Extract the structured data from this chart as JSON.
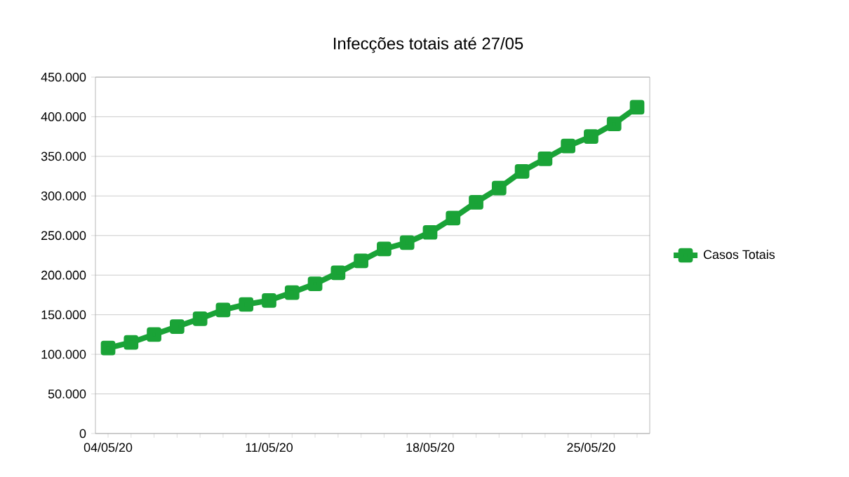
{
  "chart_data": {
    "type": "line",
    "title": "Infecções totais até 27/05",
    "categories": [
      "04/05/20",
      null,
      null,
      null,
      null,
      null,
      null,
      "11/05/20",
      null,
      null,
      null,
      null,
      null,
      null,
      "18/05/20",
      null,
      null,
      null,
      null,
      null,
      null,
      "25/05/20",
      null,
      null
    ],
    "series": [
      {
        "name": "Casos Totais",
        "color": "#1aa337",
        "values": [
          108000,
          115000,
          125000,
          135000,
          145000,
          156000,
          163000,
          168000,
          178000,
          189000,
          203000,
          218000,
          233000,
          241000,
          254000,
          272000,
          292000,
          310000,
          331000,
          347000,
          363000,
          375000,
          391000,
          412000
        ]
      }
    ],
    "ylim": [
      0,
      450000
    ],
    "yticks": [
      0,
      {
        "value": 50000,
        "label": "50.000"
      },
      {
        "value": 100000,
        "label": "100.000"
      },
      {
        "value": 150000,
        "label": "150.000"
      },
      {
        "value": 200000,
        "label": "200.000"
      },
      {
        "value": 250000,
        "label": "250.000"
      },
      {
        "value": 300000,
        "label": "300.000"
      },
      {
        "value": 350000,
        "label": "350.000"
      },
      {
        "value": 400000,
        "label": "400.000"
      },
      {
        "value": 450000,
        "label": "450.000"
      }
    ],
    "grid": "y",
    "legend": "right",
    "marker": "square",
    "line_style": "solid"
  }
}
